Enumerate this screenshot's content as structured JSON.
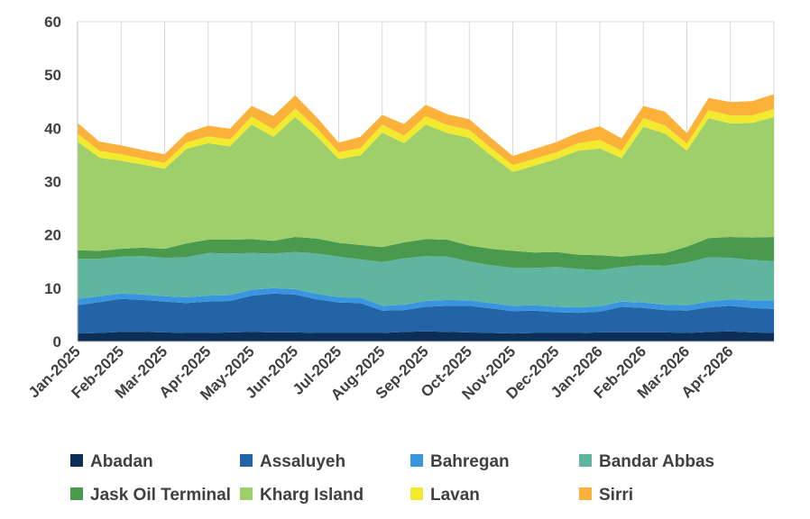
{
  "chart_data": {
    "type": "area",
    "stacked": true,
    "title": "",
    "xlabel": "",
    "ylabel": "",
    "ylim": [
      0,
      60
    ],
    "yticks": [
      0,
      10,
      20,
      30,
      40,
      50,
      60
    ],
    "grid": "vertical lines at month ticks plus horizontal line at top",
    "legend_position": "bottom",
    "x_tick_labels": [
      "Jan-2025",
      "Feb-2025",
      "Mar-2025",
      "Apr-2025",
      "May-2025",
      "Jun-2025",
      "Jul-2025",
      "Aug-2025",
      "Sep-2025",
      "Oct-2025",
      "Nov-2025",
      "Dec-2025",
      "Jan-2026",
      "Feb-2026",
      "Mar-2026",
      "Apr-2026"
    ],
    "x_points": [
      "Jan-2025",
      "mid-Jan-2025",
      "Feb-2025",
      "mid-Feb-2025",
      "Mar-2025",
      "mid-Mar-2025",
      "Apr-2025",
      "mid-Apr-2025",
      "May-2025",
      "mid-May-2025",
      "Jun-2025",
      "mid-Jun-2025",
      "Jul-2025",
      "mid-Jul-2025",
      "Aug-2025",
      "mid-Aug-2025",
      "Sep-2025",
      "mid-Sep-2025",
      "Oct-2025",
      "mid-Oct-2025",
      "Nov-2025",
      "mid-Nov-2025",
      "Dec-2025",
      "mid-Dec-2025",
      "Jan-2026",
      "mid-Jan-2026",
      "Feb-2026",
      "mid-Feb-2026",
      "Mar-2026",
      "mid-Mar-2026",
      "Apr-2026",
      "mid-Apr-2026",
      "end-Apr-2026"
    ],
    "series": [
      {
        "name": "Abadan",
        "color": "#0d2f57",
        "values": [
          1.5,
          1.6,
          1.8,
          1.8,
          1.7,
          1.6,
          1.6,
          1.7,
          1.8,
          1.7,
          1.7,
          1.6,
          1.6,
          1.6,
          1.6,
          1.8,
          1.9,
          1.8,
          1.7,
          1.6,
          1.5,
          1.6,
          1.6,
          1.6,
          1.7,
          1.7,
          1.7,
          1.7,
          1.6,
          1.8,
          1.9,
          1.7,
          1.6
        ]
      },
      {
        "name": "Assaluyeh",
        "color": "#2264a6",
        "values": [
          5.3,
          5.8,
          6.2,
          6.0,
          5.8,
          5.6,
          5.9,
          5.9,
          6.8,
          7.3,
          7.1,
          6.3,
          5.7,
          5.6,
          4.2,
          4.1,
          4.6,
          4.9,
          5.0,
          4.6,
          4.2,
          4.2,
          3.9,
          3.8,
          3.9,
          4.8,
          4.6,
          4.2,
          4.2,
          4.6,
          4.8,
          4.6,
          4.5
        ]
      },
      {
        "name": "Bahregan",
        "color": "#3a95e0",
        "values": [
          1.2,
          1.1,
          1.0,
          1.0,
          1.0,
          1.1,
          1.1,
          1.1,
          1.1,
          1.0,
          1.0,
          1.0,
          1.0,
          1.0,
          0.9,
          1.0,
          1.1,
          1.1,
          1.0,
          1.0,
          1.0,
          1.0,
          1.0,
          1.0,
          1.0,
          1.0,
          1.0,
          1.0,
          1.0,
          1.1,
          1.2,
          1.4,
          1.6
        ]
      },
      {
        "name": "Bandar Abbas",
        "color": "#5fb5a0",
        "values": [
          7.5,
          7.0,
          6.9,
          7.2,
          7.2,
          7.5,
          8.0,
          7.8,
          6.9,
          6.5,
          7.0,
          7.6,
          7.6,
          7.2,
          8.2,
          8.7,
          8.4,
          8.1,
          7.3,
          7.1,
          7.1,
          7.0,
          7.5,
          7.2,
          6.8,
          6.5,
          7.0,
          7.3,
          8.0,
          8.3,
          7.8,
          7.6,
          7.4
        ]
      },
      {
        "name": "Jask Oil Terminal",
        "color": "#4a9a4e",
        "values": [
          1.6,
          1.5,
          1.5,
          1.6,
          1.7,
          2.6,
          2.5,
          2.6,
          2.6,
          2.4,
          2.8,
          2.8,
          2.6,
          2.7,
          2.8,
          3.0,
          3.2,
          3.2,
          3.0,
          3.1,
          3.2,
          2.9,
          2.8,
          2.7,
          2.8,
          1.9,
          2.0,
          2.4,
          3.0,
          3.6,
          3.9,
          4.2,
          4.5
        ]
      },
      {
        "name": "Kharg Island",
        "color": "#9fcf6b",
        "values": [
          20.4,
          17.5,
          16.5,
          15.6,
          15.0,
          17.7,
          18.1,
          17.5,
          21.5,
          19.5,
          22.5,
          19.2,
          15.7,
          16.8,
          21.5,
          18.6,
          21.5,
          20.0,
          20.2,
          17.5,
          14.8,
          16.3,
          17.4,
          19.5,
          20.0,
          18.5,
          24.0,
          22.4,
          18.0,
          22.5,
          21.3,
          21.5,
          22.5
        ]
      },
      {
        "name": "Lavan",
        "color": "#f2ea2f",
        "values": [
          1.5,
          1.3,
          1.2,
          1.1,
          1.1,
          1.2,
          1.3,
          1.3,
          1.5,
          1.4,
          1.6,
          1.5,
          1.3,
          1.4,
          1.5,
          1.4,
          1.6,
          1.5,
          1.5,
          1.4,
          1.3,
          1.3,
          1.3,
          1.4,
          1.6,
          1.4,
          1.6,
          1.5,
          1.3,
          1.5,
          1.5,
          1.4,
          1.5
        ]
      },
      {
        "name": "Sirri",
        "color": "#fcb13b",
        "values": [
          2.0,
          1.7,
          1.7,
          1.6,
          1.6,
          1.8,
          2.0,
          2.0,
          2.0,
          2.5,
          2.5,
          2.0,
          1.8,
          2.1,
          1.8,
          2.2,
          2.1,
          2.0,
          2.0,
          1.9,
          1.7,
          1.8,
          1.9,
          2.0,
          2.6,
          2.3,
          2.3,
          2.6,
          2.0,
          2.3,
          2.5,
          2.7,
          2.8
        ]
      }
    ]
  }
}
